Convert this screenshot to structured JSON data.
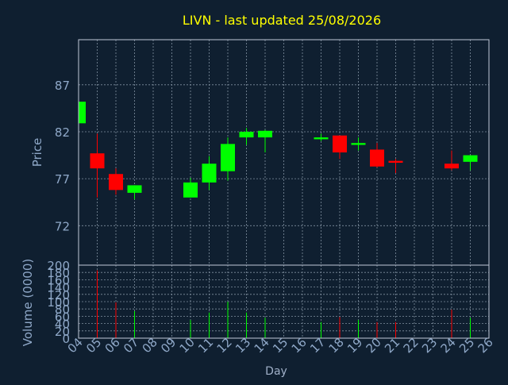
{
  "chart_data": [
    {
      "type": "candlestick",
      "title": "LIVN - last updated 25/08/2026",
      "ylabel": "Price",
      "xlabel": "",
      "ylim": [
        67.8,
        91.8
      ],
      "y_ticks": [
        72,
        77,
        82,
        87
      ],
      "grid": true,
      "colors": {
        "up": "#00ff00",
        "down": "#ff0000",
        "title": "#ffff00",
        "axis_text": "#8fa8c8",
        "background": "#0f1f30",
        "frame": "#c0c8d8",
        "grid": "#8090a0"
      },
      "candles": [
        {
          "day": "04",
          "open": 82.9,
          "high": 85.2,
          "low": 82.9,
          "close": 85.2
        },
        {
          "day": "05",
          "open": 79.7,
          "high": 81.8,
          "low": 75.0,
          "close": 78.1
        },
        {
          "day": "06",
          "open": 77.5,
          "high": 78.1,
          "low": 75.3,
          "close": 75.8
        },
        {
          "day": "07",
          "open": 75.5,
          "high": 76.3,
          "low": 74.8,
          "close": 76.3
        },
        {
          "day": "10",
          "open": 75.0,
          "high": 77.1,
          "low": 75.0,
          "close": 76.6
        },
        {
          "day": "11",
          "open": 76.6,
          "high": 79.4,
          "low": 75.8,
          "close": 78.6
        },
        {
          "day": "12",
          "open": 77.8,
          "high": 81.4,
          "low": 76.8,
          "close": 80.7
        },
        {
          "day": "13",
          "open": 81.4,
          "high": 82.4,
          "low": 80.6,
          "close": 82.0
        },
        {
          "day": "14",
          "open": 81.4,
          "high": 82.2,
          "low": 79.8,
          "close": 82.1
        },
        {
          "day": "17",
          "open": 81.2,
          "high": 81.8,
          "low": 81.0,
          "close": 81.4
        },
        {
          "day": "18",
          "open": 81.6,
          "high": 81.6,
          "low": 79.1,
          "close": 79.8
        },
        {
          "day": "19",
          "open": 80.6,
          "high": 81.4,
          "low": 80.0,
          "close": 80.8
        },
        {
          "day": "20",
          "open": 80.1,
          "high": 80.8,
          "low": 78.2,
          "close": 78.3
        },
        {
          "day": "21",
          "open": 78.9,
          "high": 79.1,
          "low": 77.6,
          "close": 78.7
        },
        {
          "day": "24",
          "open": 78.6,
          "high": 80.0,
          "low": 77.9,
          "close": 78.1
        },
        {
          "day": "25",
          "open": 78.8,
          "high": 79.5,
          "low": 77.9,
          "close": 79.5
        }
      ]
    },
    {
      "type": "bar",
      "ylabel": "Volume (0000)",
      "xlabel": "Day",
      "ylim": [
        0,
        200
      ],
      "y_ticks": [
        0,
        20,
        40,
        60,
        80,
        100,
        120,
        140,
        160,
        180,
        200
      ],
      "categories": [
        "04",
        "05",
        "06",
        "07",
        "08",
        "09",
        "10",
        "11",
        "12",
        "13",
        "14",
        "15",
        "16",
        "17",
        "18",
        "19",
        "20",
        "21",
        "22",
        "23",
        "24",
        "25",
        "26"
      ],
      "bars": [
        {
          "day": "04",
          "value": 0,
          "direction": "up"
        },
        {
          "day": "05",
          "value": 186,
          "direction": "down"
        },
        {
          "day": "06",
          "value": 98,
          "direction": "down"
        },
        {
          "day": "07",
          "value": 74,
          "direction": "up"
        },
        {
          "day": "10",
          "value": 50,
          "direction": "up"
        },
        {
          "day": "11",
          "value": 70,
          "direction": "up"
        },
        {
          "day": "12",
          "value": 100,
          "direction": "up"
        },
        {
          "day": "13",
          "value": 70,
          "direction": "up"
        },
        {
          "day": "14",
          "value": 56,
          "direction": "up"
        },
        {
          "day": "17",
          "value": 44,
          "direction": "up"
        },
        {
          "day": "18",
          "value": 58,
          "direction": "down"
        },
        {
          "day": "19",
          "value": 50,
          "direction": "up"
        },
        {
          "day": "20",
          "value": 44,
          "direction": "down"
        },
        {
          "day": "21",
          "value": 44,
          "direction": "down"
        },
        {
          "day": "24",
          "value": 78,
          "direction": "down"
        },
        {
          "day": "25",
          "value": 56,
          "direction": "up"
        }
      ]
    }
  ]
}
